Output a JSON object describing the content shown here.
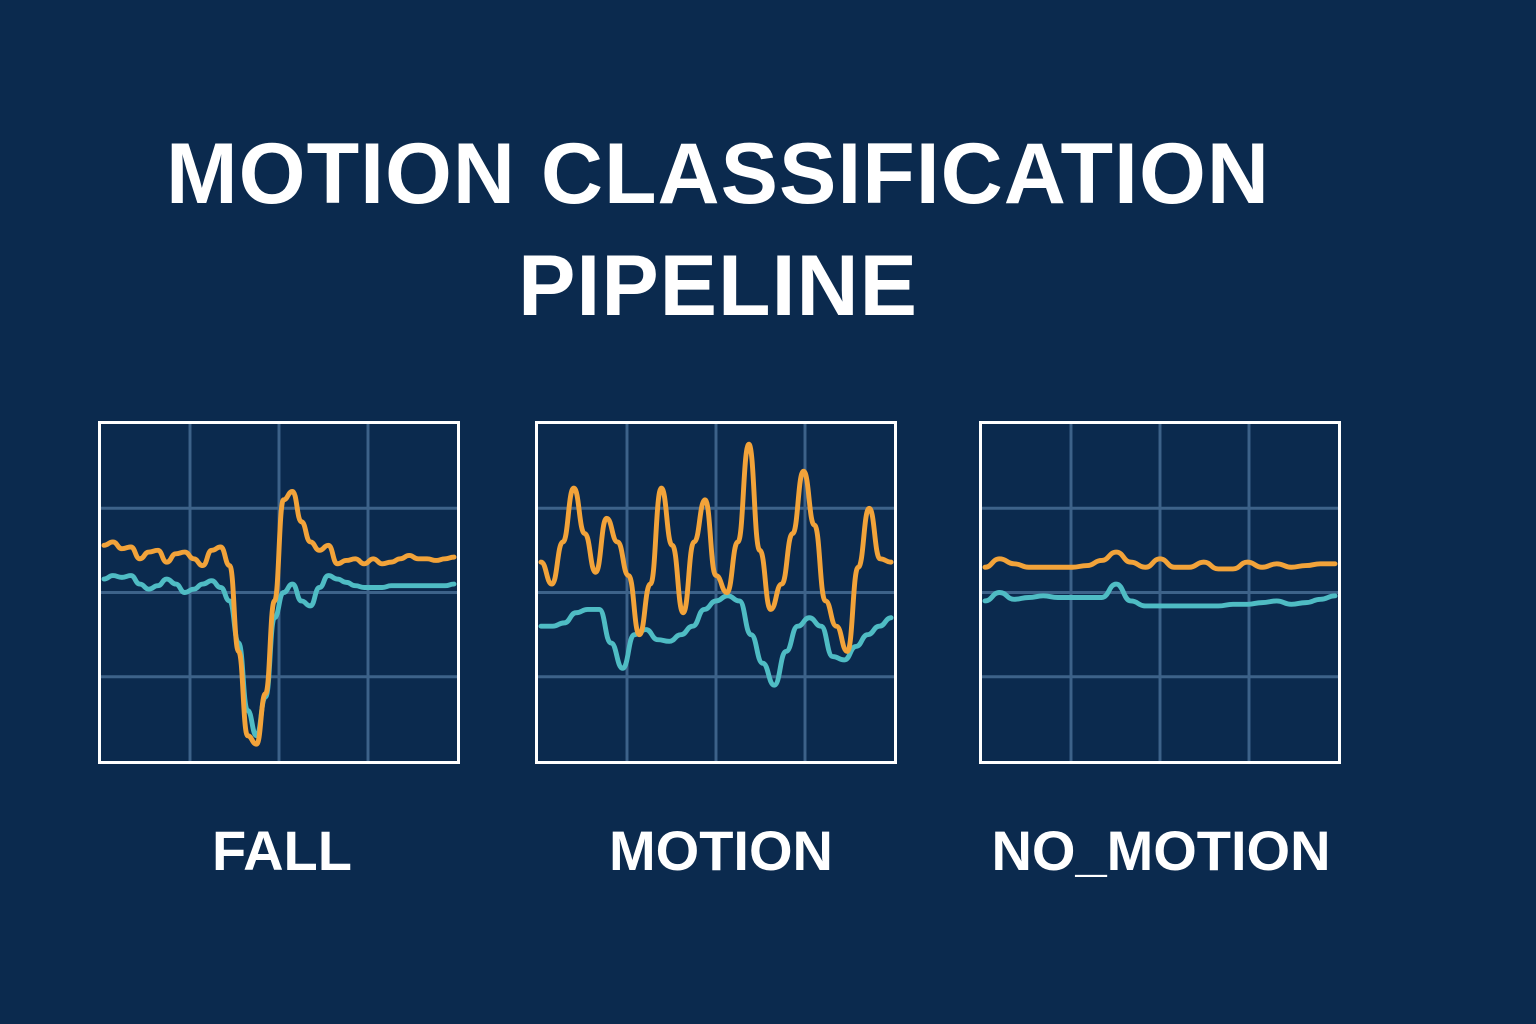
{
  "title_line1": "MOTION CLASSIFICATION",
  "title_line2": "PIPELINE",
  "colors": {
    "background": "#0b2a4e",
    "grid": "#3d6289",
    "frame": "#ffffff",
    "series_a": "#f2a33a",
    "series_b": "#4fbcc4",
    "series_a_fall_tail": "#c8cf45"
  },
  "chart_data": [
    {
      "type": "line",
      "label": "FALL",
      "grid": true,
      "ylim": [
        -1,
        1
      ],
      "series": [
        {
          "color": "#f2a33a",
          "values": [
            0.28,
            0.3,
            0.26,
            0.27,
            0.2,
            0.24,
            0.25,
            0.18,
            0.23,
            0.24,
            0.2,
            0.16,
            0.25,
            0.27,
            0.16,
            -0.35,
            -0.85,
            -0.9,
            -0.6,
            -0.05,
            0.55,
            0.6,
            0.42,
            0.3,
            0.25,
            0.28,
            0.17,
            0.19,
            0.2,
            0.17,
            0.2,
            0.17,
            0.18,
            0.2,
            0.22,
            0.2,
            0.2,
            0.19,
            0.2,
            0.21
          ]
        },
        {
          "color": "#4fbcc4",
          "values": [
            0.08,
            0.1,
            0.09,
            0.1,
            0.05,
            0.02,
            0.04,
            0.08,
            0.05,
            0.0,
            0.02,
            0.05,
            0.07,
            0.03,
            -0.05,
            -0.3,
            -0.7,
            -0.85,
            -0.62,
            -0.15,
            0.0,
            0.05,
            -0.05,
            -0.08,
            0.03,
            0.1,
            0.08,
            0.06,
            0.04,
            0.03,
            0.03,
            0.03,
            0.04,
            0.04,
            0.04,
            0.04,
            0.04,
            0.04,
            0.04,
            0.05
          ]
        }
      ]
    },
    {
      "type": "line",
      "label": "MOTION",
      "grid": true,
      "ylim": [
        -1,
        1
      ],
      "series": [
        {
          "color": "#f2a33a",
          "values": [
            0.18,
            0.05,
            0.3,
            0.62,
            0.35,
            0.12,
            0.44,
            0.3,
            0.1,
            -0.25,
            0.05,
            0.62,
            0.28,
            -0.12,
            0.3,
            0.55,
            0.1,
            0.0,
            0.3,
            0.88,
            0.25,
            -0.1,
            0.05,
            0.35,
            0.72,
            0.4,
            -0.05,
            -0.2,
            -0.35,
            0.15,
            0.5,
            0.2,
            0.18
          ]
        },
        {
          "color": "#4fbcc4",
          "values": [
            -0.2,
            -0.2,
            -0.18,
            -0.12,
            -0.1,
            -0.1,
            -0.3,
            -0.45,
            -0.25,
            -0.22,
            -0.28,
            -0.29,
            -0.25,
            -0.2,
            -0.1,
            -0.05,
            -0.02,
            -0.05,
            -0.25,
            -0.42,
            -0.55,
            -0.35,
            -0.2,
            -0.15,
            -0.2,
            -0.38,
            -0.4,
            -0.32,
            -0.25,
            -0.2,
            -0.15
          ]
        }
      ]
    },
    {
      "type": "line",
      "label": "NO_MOTION",
      "grid": true,
      "ylim": [
        -1,
        1
      ],
      "series": [
        {
          "color": "#f2a33a",
          "values": [
            0.15,
            0.2,
            0.17,
            0.15,
            0.15,
            0.15,
            0.15,
            0.16,
            0.19,
            0.24,
            0.18,
            0.15,
            0.2,
            0.15,
            0.15,
            0.18,
            0.14,
            0.14,
            0.18,
            0.15,
            0.17,
            0.15,
            0.16,
            0.17,
            0.17
          ]
        },
        {
          "color": "#4fbcc4",
          "values": [
            -0.05,
            0.0,
            -0.04,
            -0.03,
            -0.02,
            -0.03,
            -0.03,
            -0.03,
            -0.03,
            0.05,
            -0.05,
            -0.08,
            -0.08,
            -0.08,
            -0.08,
            -0.08,
            -0.08,
            -0.07,
            -0.07,
            -0.06,
            -0.05,
            -0.07,
            -0.06,
            -0.04,
            -0.02
          ]
        }
      ]
    }
  ]
}
